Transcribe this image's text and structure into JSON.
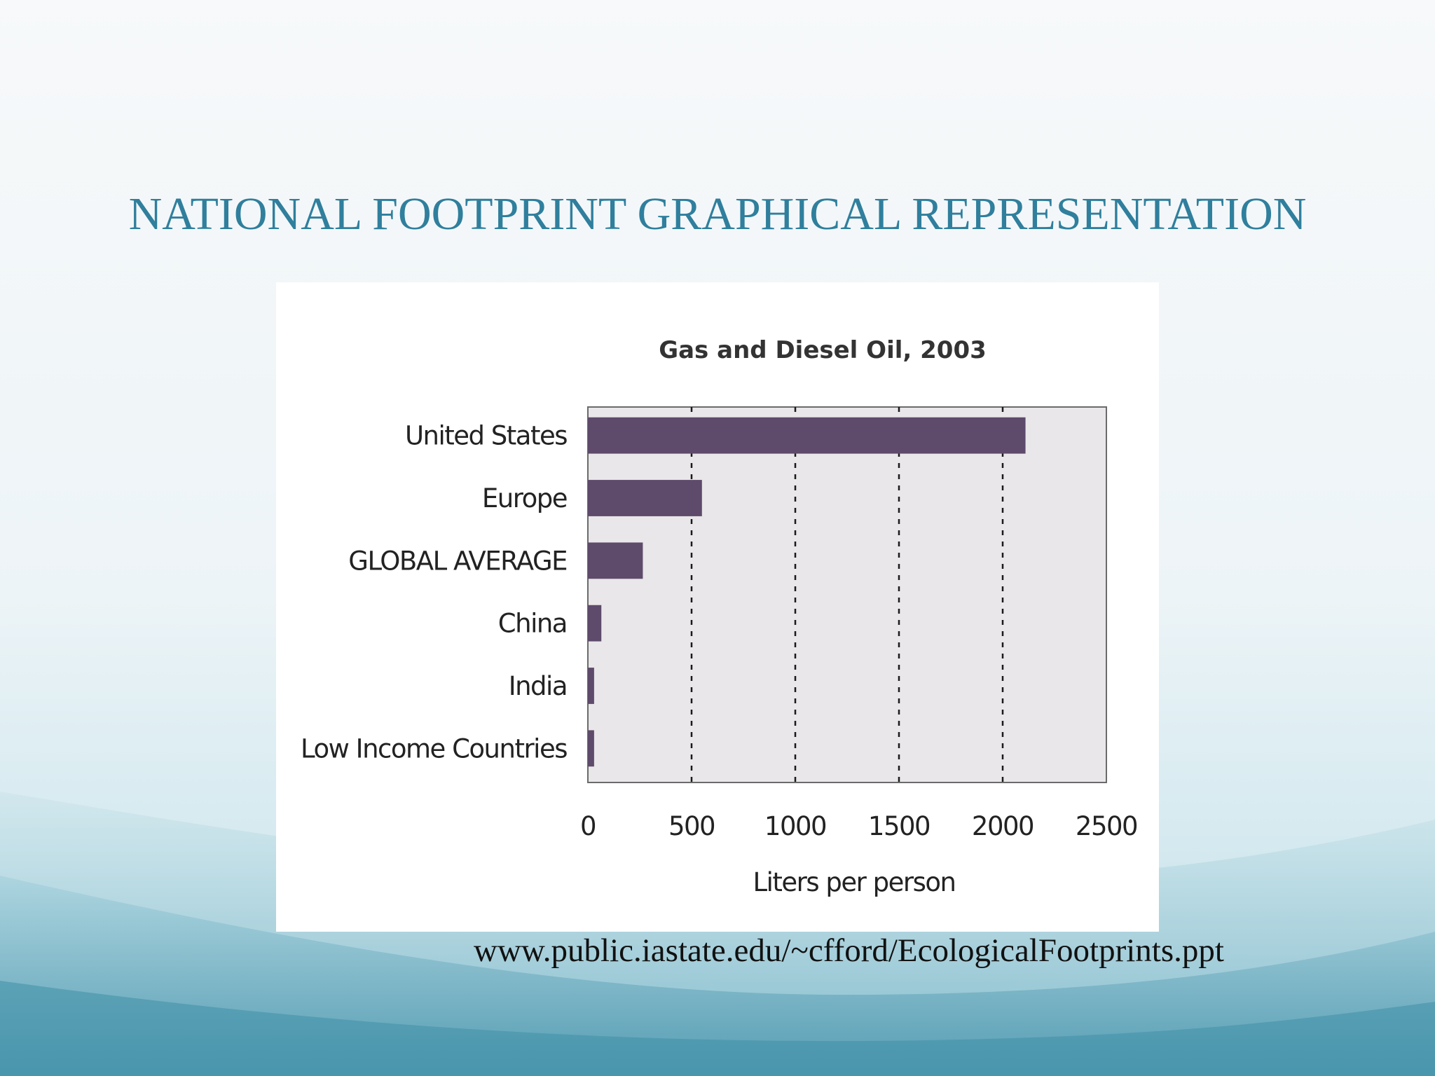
{
  "slide": {
    "title": "NATIONAL FOOTPRINT GRAPHICAL REPRESENTATION",
    "source": "www.public.iastate.edu/~cfford/EcologicalFootprints.ppt"
  },
  "colors": {
    "title": "#2f7f9d",
    "bar": "#5e4a6b",
    "plot_background": "#e9e7e9",
    "wave_light": "#a8d4de",
    "wave_dark": "#3f8fa8"
  },
  "chart_data": {
    "type": "bar",
    "orientation": "horizontal",
    "title": "Gas and Diesel Oil, 2003",
    "xlabel": "Liters per person",
    "ylabel": "",
    "categories": [
      "United States",
      "Europe",
      "GLOBAL AVERAGE",
      "China",
      "India",
      "Low Income Countries"
    ],
    "values": [
      2110,
      550,
      265,
      65,
      30,
      30
    ],
    "xlim": [
      0,
      2500
    ],
    "xticks": [
      0,
      500,
      1000,
      1500,
      2000,
      2500
    ],
    "xtick_labels": [
      "0",
      "500",
      "1000",
      "1500",
      "2000",
      "2500"
    ],
    "grid": "vertical dashed lines at major ticks",
    "legend": "none"
  }
}
